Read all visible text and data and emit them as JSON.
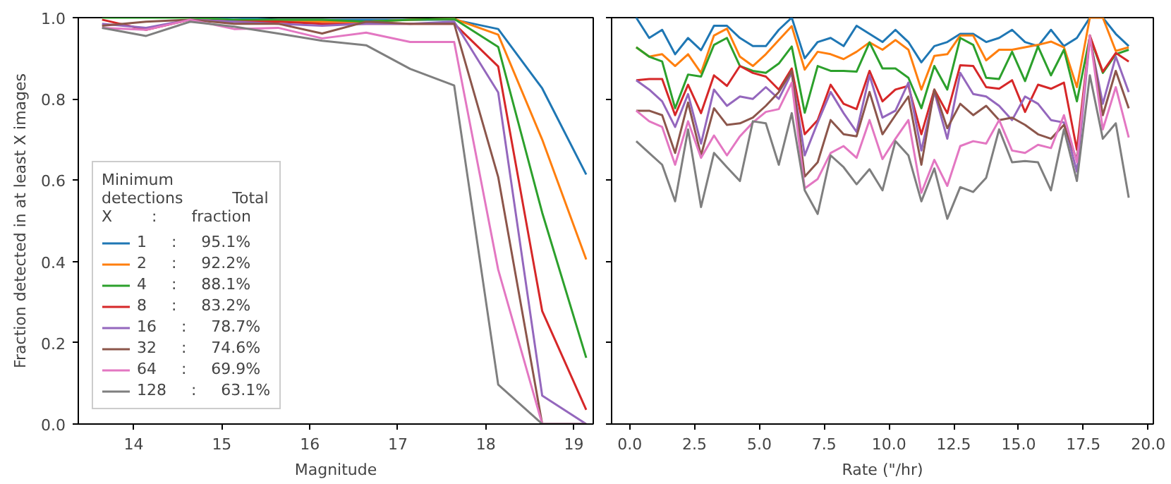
{
  "chart_data": [
    {
      "type": "line",
      "xlabel": "Magnitude",
      "ylabel": "Fraction detected in at least X images",
      "legend_title": "Minimum\ndetections          Total\nX        :       fraction",
      "legend": "bottom left",
      "grid": false,
      "line_style": "solid",
      "marker": "none",
      "x": [
        13.64,
        14.14,
        14.64,
        15.14,
        15.64,
        16.14,
        16.64,
        17.14,
        17.64,
        18.14,
        18.64,
        19.14
      ],
      "xlim": [
        13.37,
        19.22
      ],
      "xticks": [
        14,
        15,
        16,
        17,
        18,
        19
      ],
      "ylim": [
        0,
        1
      ],
      "yticks": [
        {
          "value": 0,
          "label": "0.0"
        },
        {
          "value": 0.2,
          "label": "0.2"
        },
        {
          "value": 0.4,
          "label": "0.4"
        },
        {
          "value": 0.6,
          "label": "0.6"
        },
        {
          "value": 0.8,
          "label": "0.8"
        },
        {
          "value": 1,
          "label": "1.0"
        }
      ],
      "series": [
        {
          "name": "1     :     95.1%",
          "color": "#1f77b4",
          "values": [
            null,
            null,
            1.0,
            1.0,
            0.995,
            0.995,
            0.995,
            0.995,
            0.995,
            0.972,
            0.826,
            0.614
          ]
        },
        {
          "name": "2     :     92.2%",
          "color": "#ff7f0e",
          "values": [
            null,
            null,
            null,
            0.995,
            0.99,
            0.99,
            0.99,
            0.995,
            0.997,
            0.958,
            0.7,
            0.405
          ]
        },
        {
          "name": "4     :     88.1%",
          "color": "#2ca02c",
          "values": [
            1.0,
            1.0,
            1.0,
            0.995,
            0.995,
            0.995,
            0.99,
            0.995,
            0.997,
            0.928,
            0.52,
            0.163
          ]
        },
        {
          "name": "8     :     83.2%",
          "color": "#d62728",
          "values": [
            0.995,
            0.97,
            0.995,
            0.99,
            0.99,
            0.985,
            0.985,
            0.985,
            0.985,
            0.88,
            0.278,
            0.035
          ]
        },
        {
          "name": "16     :     78.7%",
          "color": "#9467bd",
          "values": [
            0.985,
            0.975,
            0.995,
            0.99,
            0.985,
            0.98,
            0.985,
            0.985,
            0.99,
            0.816,
            0.07,
            0.0
          ]
        },
        {
          "name": "32     :     74.6%",
          "color": "#8c564b",
          "values": [
            0.98,
            0.99,
            0.995,
            0.985,
            0.985,
            0.961,
            0.99,
            0.985,
            0.985,
            0.608,
            0.0,
            0.0
          ]
        },
        {
          "name": "64     :     69.9%",
          "color": "#e377c2",
          "values": [
            0.975,
            0.97,
            0.995,
            0.972,
            0.975,
            0.949,
            0.963,
            0.94,
            0.94,
            0.38,
            0.0,
            0.0
          ]
        },
        {
          "name": "128     :     63.1%",
          "color": "#7f7f7f",
          "values": [
            0.975,
            0.955,
            0.99,
            0.978,
            0.961,
            0.943,
            0.932,
            0.874,
            0.833,
            0.097,
            0.0,
            0.0
          ]
        }
      ]
    },
    {
      "type": "line",
      "xlabel": "Rate (\"/hr)",
      "grid": false,
      "line_style": "solid",
      "marker": "none",
      "tick_labels": "x",
      "x": [
        0.25,
        0.75,
        1.25,
        1.75,
        2.25,
        2.75,
        3.25,
        3.75,
        4.25,
        4.75,
        5.25,
        5.75,
        6.25,
        6.75,
        7.25,
        7.75,
        8.25,
        8.75,
        9.25,
        9.75,
        10.25,
        10.75,
        11.25,
        11.75,
        12.25,
        12.75,
        13.25,
        13.75,
        14.25,
        14.75,
        15.25,
        15.75,
        16.25,
        16.75,
        17.25,
        17.75,
        18.25,
        18.75,
        19.25
      ],
      "xlim": [
        -0.7,
        20.2
      ],
      "xticks": [
        {
          "value": 0,
          "label": "0.0"
        },
        {
          "value": 2.5,
          "label": "2.5"
        },
        {
          "value": 5,
          "label": "5.0"
        },
        {
          "value": 7.5,
          "label": "7.5"
        },
        {
          "value": 10,
          "label": "10.0"
        },
        {
          "value": 12.5,
          "label": "12.5"
        },
        {
          "value": 15,
          "label": "15.0"
        },
        {
          "value": 17.5,
          "label": "17.5"
        },
        {
          "value": 20,
          "label": "20.0"
        }
      ],
      "ylim": [
        0,
        1
      ],
      "yticks": [
        0,
        0.2,
        0.4,
        0.6,
        0.8,
        1
      ],
      "series": [
        {
          "color": "#1f77b4",
          "values": [
            1.0,
            0.95,
            0.97,
            0.91,
            0.95,
            0.92,
            0.98,
            0.98,
            0.95,
            0.93,
            0.93,
            0.97,
            1.0,
            0.9,
            0.94,
            0.95,
            0.93,
            0.98,
            0.96,
            0.94,
            0.97,
            0.94,
            0.89,
            0.93,
            0.94,
            0.96,
            0.96,
            0.94,
            0.95,
            0.97,
            0.94,
            0.93,
            0.97,
            0.93,
            0.95,
            1.0,
            1.0,
            0.96,
            0.93
          ]
        },
        {
          "color": "#ff7f0e",
          "values": [
            0.927,
            0.904,
            0.91,
            0.881,
            0.91,
            0.864,
            0.956,
            0.973,
            0.904,
            0.881,
            0.91,
            0.945,
            0.979,
            0.872,
            0.916,
            0.91,
            0.898,
            0.916,
            0.939,
            0.921,
            0.945,
            0.921,
            0.823,
            0.906,
            0.91,
            0.956,
            0.956,
            0.895,
            0.921,
            0.921,
            0.927,
            0.933,
            0.941,
            0.927,
            0.829,
            1.0,
            1.0,
            0.918,
            0.927
          ]
        },
        {
          "color": "#2ca02c",
          "values": [
            0.927,
            0.904,
            0.892,
            0.777,
            0.86,
            0.855,
            0.933,
            0.95,
            0.881,
            0.869,
            0.864,
            0.887,
            0.929,
            0.766,
            0.881,
            0.869,
            0.869,
            0.867,
            0.939,
            0.875,
            0.875,
            0.852,
            0.777,
            0.881,
            0.823,
            0.95,
            0.933,
            0.852,
            0.849,
            0.916,
            0.844,
            0.929,
            0.858,
            0.921,
            0.794,
            0.953,
            0.864,
            0.91,
            0.921
          ]
        },
        {
          "color": "#d62728",
          "values": [
            0.846,
            0.849,
            0.849,
            0.76,
            0.835,
            0.765,
            0.858,
            0.832,
            0.881,
            0.864,
            0.855,
            0.823,
            0.875,
            0.713,
            0.748,
            0.835,
            0.788,
            0.775,
            0.869,
            0.794,
            0.823,
            0.832,
            0.713,
            0.823,
            0.765,
            0.883,
            0.881,
            0.829,
            0.825,
            0.846,
            0.768,
            0.835,
            0.825,
            0.84,
            0.675,
            0.956,
            0.867,
            0.913,
            0.892
          ]
        },
        {
          "color": "#9467bd",
          "values": [
            0.846,
            0.823,
            0.794,
            0.731,
            0.812,
            0.69,
            0.823,
            0.783,
            0.806,
            0.8,
            0.829,
            0.8,
            0.864,
            0.661,
            0.742,
            0.817,
            0.765,
            0.719,
            0.858,
            0.754,
            0.771,
            0.84,
            0.673,
            0.817,
            0.702,
            0.864,
            0.812,
            0.806,
            0.783,
            0.748,
            0.806,
            0.788,
            0.748,
            0.742,
            0.621,
            0.95,
            0.788,
            0.904,
            0.817
          ]
        },
        {
          "color": "#8c564b",
          "values": [
            0.771,
            0.771,
            0.76,
            0.667,
            0.791,
            0.661,
            0.777,
            0.736,
            0.74,
            0.754,
            0.783,
            0.817,
            0.869,
            0.609,
            0.644,
            0.748,
            0.713,
            0.708,
            0.817,
            0.713,
            0.76,
            0.806,
            0.638,
            0.823,
            0.728,
            0.788,
            0.76,
            0.783,
            0.748,
            0.754,
            0.736,
            0.713,
            0.702,
            0.736,
            0.65,
            0.956,
            0.76,
            0.869,
            0.777
          ]
        },
        {
          "color": "#e377c2",
          "values": [
            0.771,
            0.745,
            0.731,
            0.638,
            0.745,
            0.655,
            0.71,
            0.661,
            0.708,
            0.742,
            0.768,
            0.775,
            0.84,
            0.58,
            0.603,
            0.667,
            0.684,
            0.655,
            0.748,
            0.652,
            0.702,
            0.748,
            0.569,
            0.65,
            0.586,
            0.684,
            0.696,
            0.69,
            0.748,
            0.673,
            0.667,
            0.687,
            0.679,
            0.76,
            0.644,
            0.956,
            0.725,
            0.829,
            0.705
          ]
        },
        {
          "color": "#7f7f7f",
          "values": [
            0.696,
            0.667,
            0.638,
            0.548,
            0.725,
            0.534,
            0.667,
            0.632,
            0.598,
            0.745,
            0.74,
            0.638,
            0.765,
            0.575,
            0.517,
            0.661,
            0.632,
            0.59,
            0.627,
            0.575,
            0.696,
            0.661,
            0.548,
            0.629,
            0.505,
            0.583,
            0.571,
            0.606,
            0.725,
            0.644,
            0.647,
            0.644,
            0.575,
            0.725,
            0.598,
            0.858,
            0.702,
            0.74,
            0.557
          ]
        }
      ]
    }
  ]
}
